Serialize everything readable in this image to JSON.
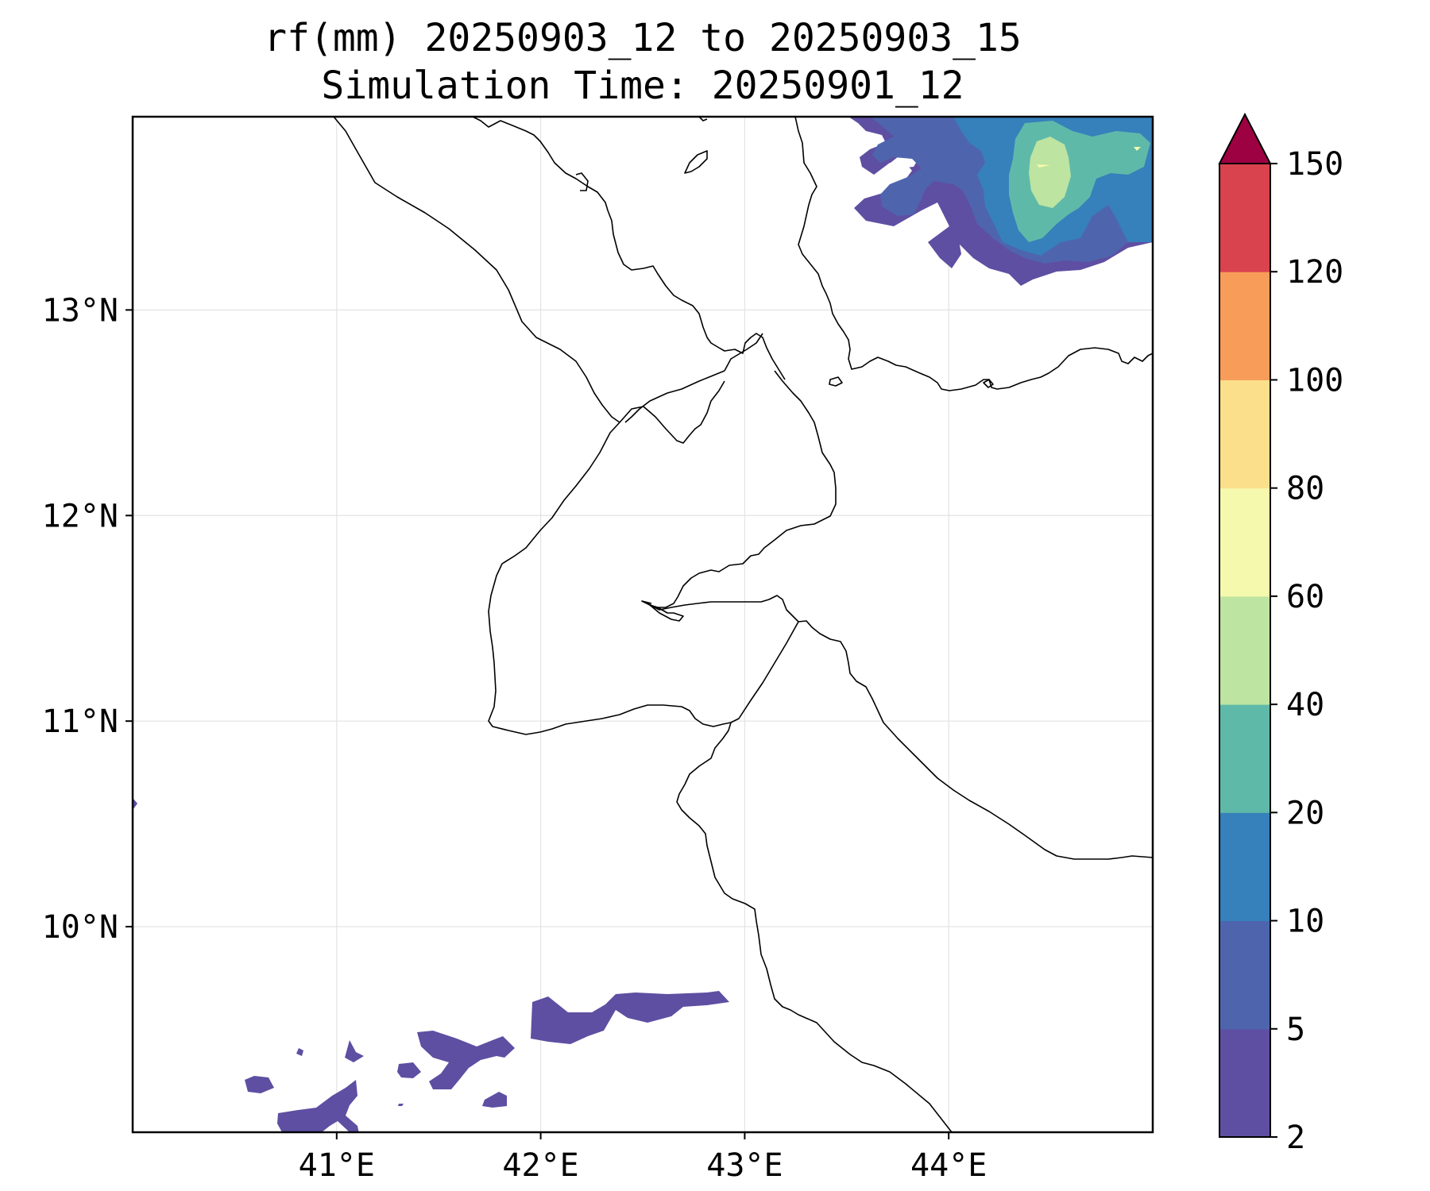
{
  "title": {
    "line1": "rf(mm) 20250903_12 to 20250903_15",
    "line2": "Simulation Time: 20250901_12"
  },
  "map": {
    "variable": "rf(mm)",
    "lon_range": [
      40.0,
      45.0
    ],
    "lat_range": [
      9.0,
      13.94
    ],
    "grid": true,
    "lon_ticks": [
      41,
      42,
      43,
      44
    ],
    "lat_ticks": [
      10,
      11,
      12,
      13
    ],
    "lon_tick_labels": [
      "41°E",
      "42°E",
      "43°E",
      "44°E"
    ],
    "lat_tick_labels": [
      "10°N",
      "11°N",
      "12°N",
      "13°N"
    ]
  },
  "colorbar": {
    "levels": [
      2,
      5,
      10,
      20,
      40,
      60,
      80,
      100,
      120,
      150
    ],
    "tick_labels": [
      "2",
      "5",
      "10",
      "20",
      "40",
      "60",
      "80",
      "100",
      "120",
      "150"
    ],
    "colors": [
      "#5e4fa2",
      "#4e65ae",
      "#3680bb",
      "#5fb9a9",
      "#bde4a0",
      "#f5f9ad",
      "#fbdf8b",
      "#f89c59",
      "#d8434e",
      "#9e0142"
    ],
    "extend": "max",
    "over_color": "#9e0142"
  },
  "rain_regions": [
    {
      "name": "ne-heavy-cluster",
      "level_range": "2-60",
      "lon_range": [
        43.5,
        45.0
      ],
      "lat_range": [
        13.2,
        13.94
      ]
    },
    {
      "name": "sw-light-band",
      "level_range": "2-5",
      "lon_range": [
        40.6,
        42.9
      ],
      "lat_range": [
        9.0,
        9.7
      ]
    },
    {
      "name": "west-edge-speck",
      "level_range": "2-5",
      "lon_range": [
        40.0,
        40.03
      ],
      "lat_range": [
        10.58,
        10.62
      ]
    }
  ]
}
